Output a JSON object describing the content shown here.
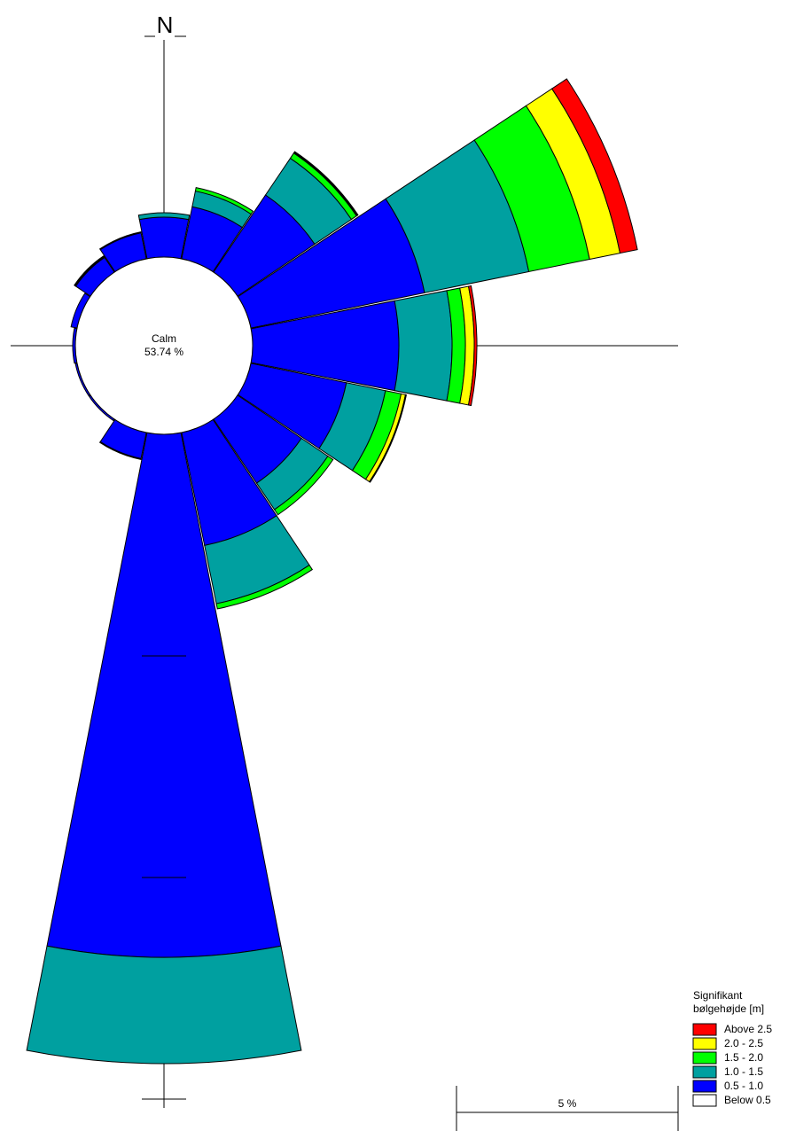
{
  "chart_data": {
    "type": "rose",
    "categories": [
      "N",
      null,
      null,
      null,
      null,
      null,
      null,
      null,
      null,
      null,
      null,
      null,
      null,
      null,
      null,
      null
    ],
    "calm_label": "Calm",
    "calm_value": 53.74,
    "calm_value_label": "53.74 %",
    "rticks": [
      5,
      10,
      15
    ],
    "scale_bar": {
      "value": 5,
      "label": "5 %"
    },
    "legend_title": "Signifikant bølgehøjde [m]",
    "series": [
      {
        "name": "Below 0.5",
        "color": "#ffffff",
        "values": [
          0,
          0,
          0,
          0,
          0,
          0,
          0,
          0,
          0,
          0,
          0,
          0,
          0,
          0,
          0,
          0
        ]
      },
      {
        "name": "0.5 - 1.0",
        "color": "#0000ff",
        "values": [
          0.9,
          1.2,
          2.1,
          4.0,
          3.3,
          2.2,
          1.74,
          2.6,
          11.8,
          0.6,
          0.04,
          0.04,
          0.06,
          0.14,
          0.4,
          0.6
        ]
      },
      {
        "name": "1.0 - 1.5",
        "color": "#00a0a0",
        "values": [
          0.1,
          0.36,
          1.0,
          2.4,
          1.2,
          0.9,
          0.72,
          1.34,
          2.4,
          0.02,
          0,
          0,
          0,
          0,
          0.02,
          0.02
        ]
      },
      {
        "name": "1.5 - 2.0",
        "color": "#00ff00",
        "values": [
          0,
          0.08,
          0.14,
          1.4,
          0.3,
          0.36,
          0.14,
          0.12,
          0,
          0,
          0,
          0,
          0,
          0,
          0.02,
          0
        ]
      },
      {
        "name": "2.0 - 2.5",
        "color": "#ffff00",
        "values": [
          0,
          0,
          0.02,
          0.7,
          0.2,
          0.1,
          0,
          0,
          0,
          0,
          0,
          0,
          0,
          0,
          0,
          0
        ]
      },
      {
        "name": "Above 2.5",
        "color": "#ff0000",
        "values": [
          0,
          0,
          0.02,
          0.4,
          0.06,
          0.02,
          0,
          0,
          0,
          0,
          0,
          0,
          0,
          0,
          0,
          0
        ]
      }
    ]
  }
}
